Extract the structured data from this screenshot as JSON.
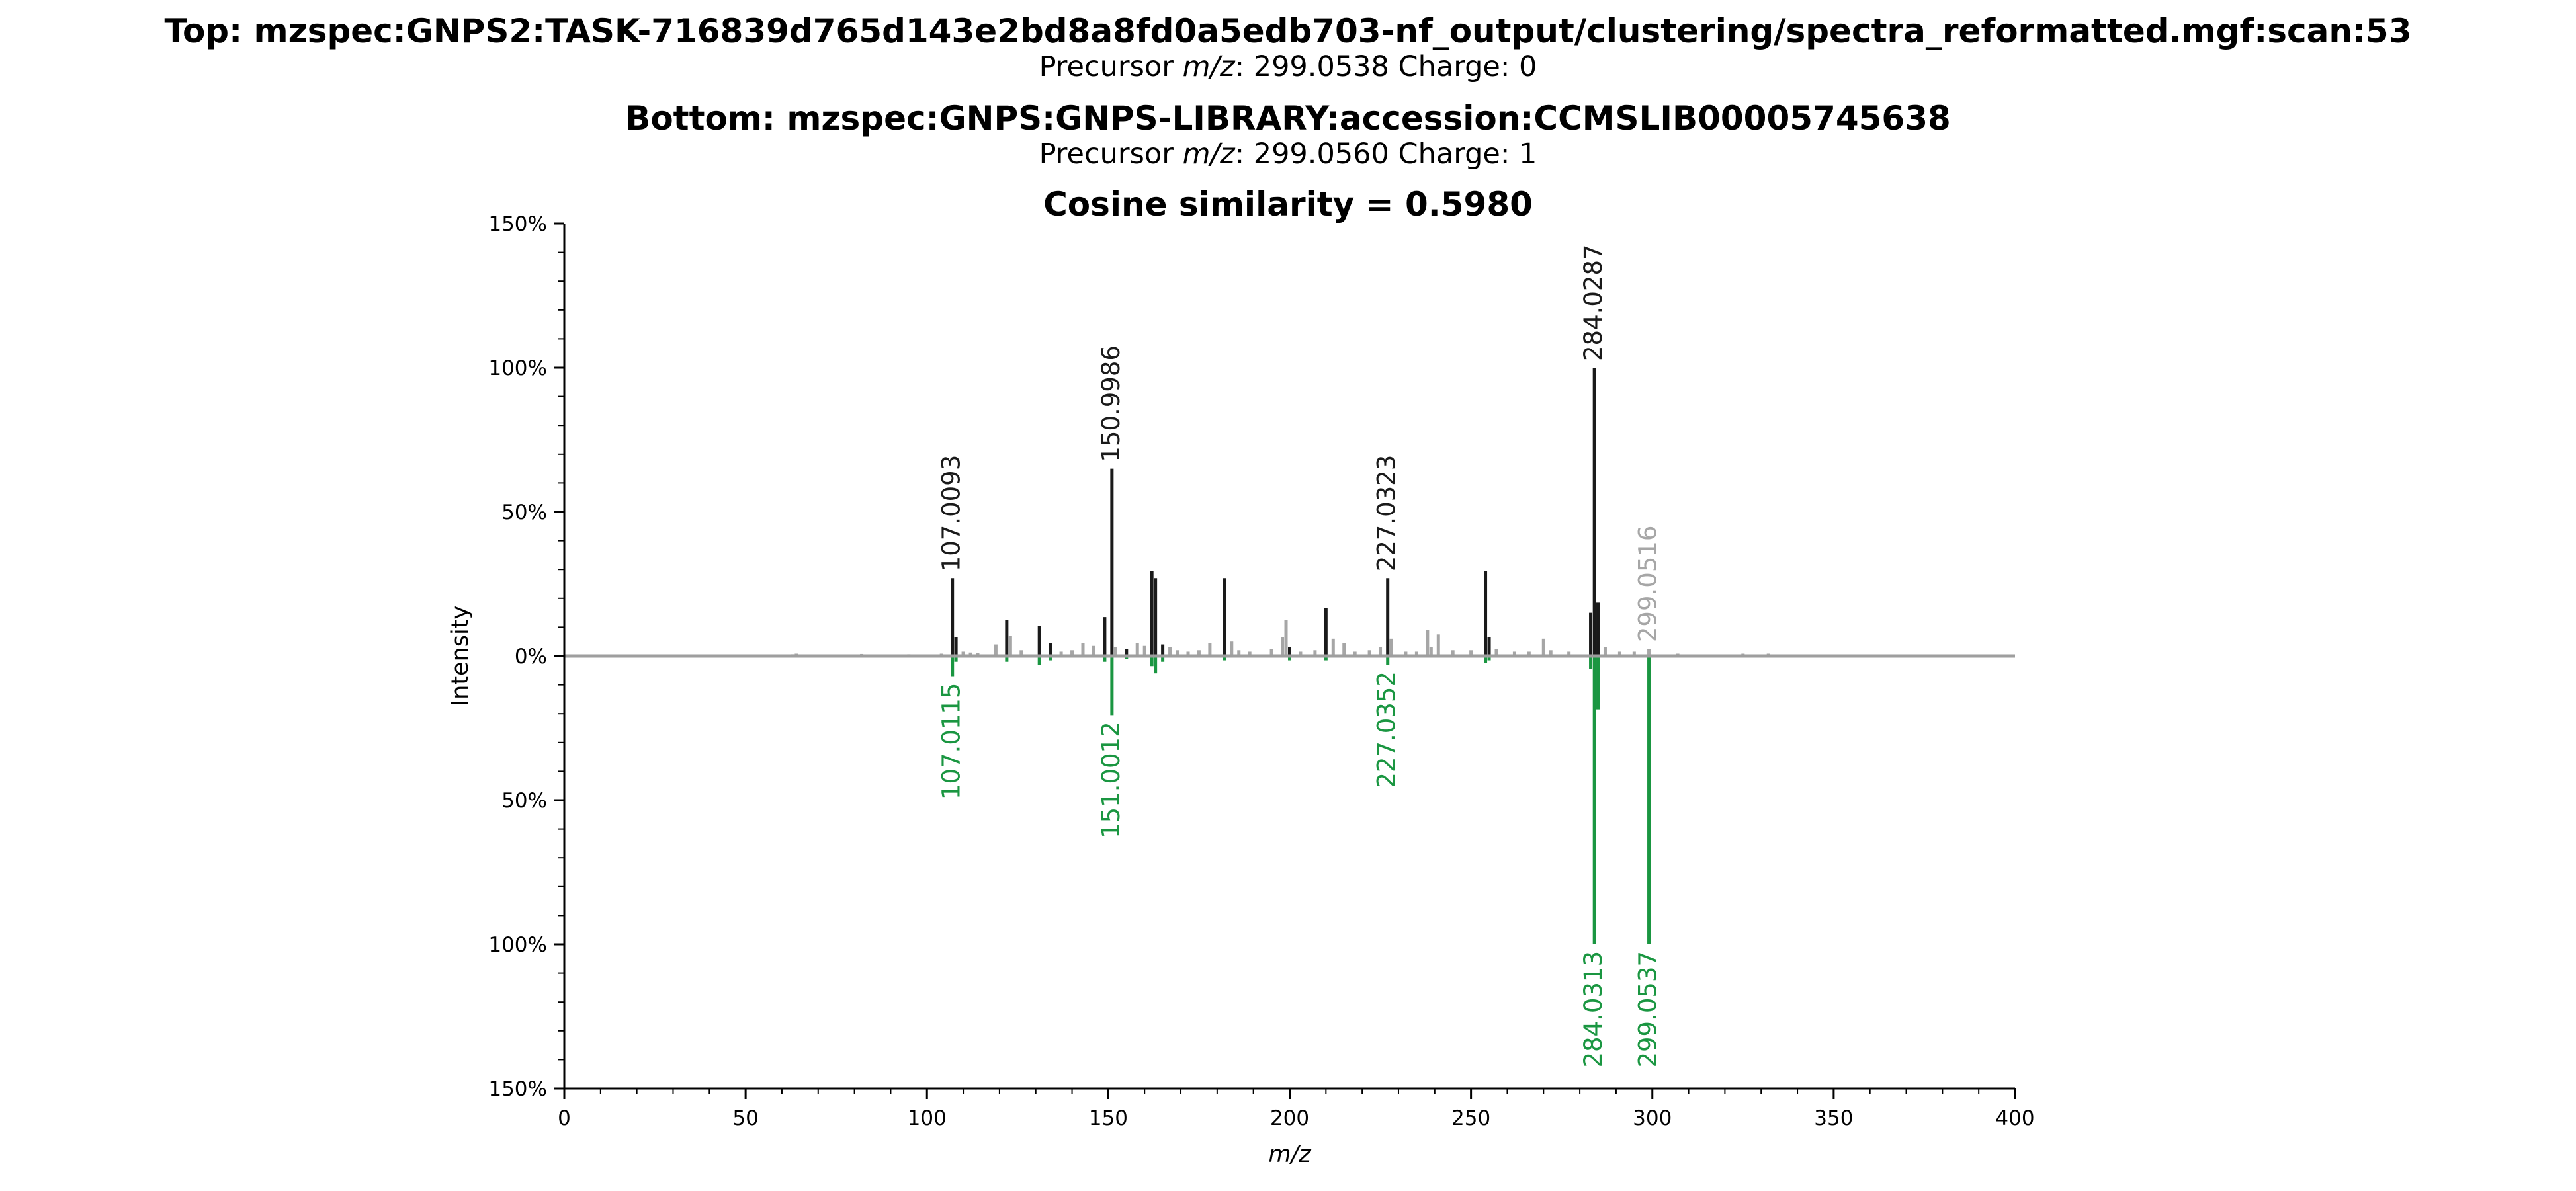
{
  "titles": {
    "top": "Top: mzspec:GNPS2:TASK-716839d765d143e2bd8a8fd0a5edb703-nf_output/clustering/spectra_reformatted.mgf:scan:53",
    "top_precursor_label": "Precursor ",
    "top_precursor_mz_word": "m/z",
    "top_precursor_rest": ": 299.0538 Charge: 0",
    "bottom": "Bottom: mzspec:GNPS:GNPS-LIBRARY:accession:CCMSLIB00005745638",
    "bottom_precursor_label": "Precursor ",
    "bottom_precursor_mz_word": "m/z",
    "bottom_precursor_rest": ": 299.0560 Charge: 1",
    "similarity": "Cosine similarity = 0.5980"
  },
  "chart_data": {
    "type": "bar",
    "subtype": "mirror-spectrum",
    "xlabel": "m/z",
    "ylabel": "Intensity",
    "xlim": [
      0,
      400
    ],
    "ylim": [
      -150,
      150
    ],
    "x_ticks": [
      "0",
      "50",
      "100",
      "150",
      "200",
      "250",
      "300",
      "350",
      "400"
    ],
    "y_ticks": [
      {
        "value": 150,
        "label": "150%"
      },
      {
        "value": 100,
        "label": "100%"
      },
      {
        "value": 50,
        "label": "50%"
      },
      {
        "value": 0,
        "label": "0%"
      },
      {
        "value": -50,
        "label": "50%"
      },
      {
        "value": -100,
        "label": "100%"
      },
      {
        "value": -150,
        "label": "150%"
      }
    ],
    "colors": {
      "matched": "#1a1a1a",
      "unmatched": "#a6a6a6",
      "bottom_matched": "#1a9641",
      "bottom_unmatched": "#a6a6a6",
      "baseline": "#9e9e9e",
      "label_top": "#1a1a1a",
      "label_top_unmatched": "#a6a6a6",
      "label_bottom": "#1a9641"
    },
    "top_peaks": [
      {
        "mz": 63.0,
        "intensity": 0.6,
        "matched": false
      },
      {
        "mz": 64.0,
        "intensity": 0.8,
        "matched": false
      },
      {
        "mz": 82.0,
        "intensity": 0.7,
        "matched": false
      },
      {
        "mz": 95.0,
        "intensity": 0.6,
        "matched": false
      },
      {
        "mz": 104.0,
        "intensity": 0.8,
        "matched": false
      },
      {
        "mz": 107.0093,
        "intensity": 27,
        "matched": true,
        "label": "107.0093"
      },
      {
        "mz": 108.0,
        "intensity": 6.5,
        "matched": true
      },
      {
        "mz": 110.0,
        "intensity": 1.5,
        "matched": false
      },
      {
        "mz": 112.0,
        "intensity": 1.2,
        "matched": false
      },
      {
        "mz": 114.0,
        "intensity": 1.0,
        "matched": false
      },
      {
        "mz": 119.0,
        "intensity": 4.0,
        "matched": false
      },
      {
        "mz": 122.0,
        "intensity": 12.5,
        "matched": true
      },
      {
        "mz": 123.0,
        "intensity": 7.0,
        "matched": false
      },
      {
        "mz": 126.0,
        "intensity": 2.0,
        "matched": false
      },
      {
        "mz": 131.0,
        "intensity": 10.5,
        "matched": true
      },
      {
        "mz": 134.0,
        "intensity": 4.5,
        "matched": true
      },
      {
        "mz": 137.0,
        "intensity": 1.5,
        "matched": false
      },
      {
        "mz": 140.0,
        "intensity": 2.0,
        "matched": false
      },
      {
        "mz": 143.0,
        "intensity": 4.5,
        "matched": false
      },
      {
        "mz": 146.0,
        "intensity": 3.5,
        "matched": false
      },
      {
        "mz": 149.0,
        "intensity": 13.5,
        "matched": true
      },
      {
        "mz": 150.9986,
        "intensity": 65,
        "matched": true,
        "label": "150.9986"
      },
      {
        "mz": 152.0,
        "intensity": 3.0,
        "matched": false
      },
      {
        "mz": 155.0,
        "intensity": 2.5,
        "matched": true
      },
      {
        "mz": 158.0,
        "intensity": 4.5,
        "matched": false
      },
      {
        "mz": 160.0,
        "intensity": 3.5,
        "matched": false
      },
      {
        "mz": 162.0,
        "intensity": 29.5,
        "matched": true
      },
      {
        "mz": 163.0,
        "intensity": 27,
        "matched": true
      },
      {
        "mz": 165.0,
        "intensity": 4.0,
        "matched": true
      },
      {
        "mz": 167.0,
        "intensity": 3.0,
        "matched": false
      },
      {
        "mz": 169.0,
        "intensity": 2.0,
        "matched": false
      },
      {
        "mz": 172.0,
        "intensity": 1.5,
        "matched": false
      },
      {
        "mz": 175.0,
        "intensity": 2.0,
        "matched": false
      },
      {
        "mz": 178.0,
        "intensity": 4.5,
        "matched": false
      },
      {
        "mz": 182.0,
        "intensity": 27,
        "matched": true
      },
      {
        "mz": 184.0,
        "intensity": 5.0,
        "matched": false
      },
      {
        "mz": 186.0,
        "intensity": 2.0,
        "matched": false
      },
      {
        "mz": 189.0,
        "intensity": 1.5,
        "matched": false
      },
      {
        "mz": 195.0,
        "intensity": 2.5,
        "matched": false
      },
      {
        "mz": 198.0,
        "intensity": 6.5,
        "matched": false
      },
      {
        "mz": 199.0,
        "intensity": 12.5,
        "matched": false
      },
      {
        "mz": 200.0,
        "intensity": 3.0,
        "matched": true
      },
      {
        "mz": 203.0,
        "intensity": 1.5,
        "matched": false
      },
      {
        "mz": 207.0,
        "intensity": 2.0,
        "matched": false
      },
      {
        "mz": 210.0,
        "intensity": 16.5,
        "matched": true
      },
      {
        "mz": 212.0,
        "intensity": 6.0,
        "matched": false
      },
      {
        "mz": 215.0,
        "intensity": 4.5,
        "matched": false
      },
      {
        "mz": 218.0,
        "intensity": 1.5,
        "matched": false
      },
      {
        "mz": 222.0,
        "intensity": 2.0,
        "matched": false
      },
      {
        "mz": 225.0,
        "intensity": 3.0,
        "matched": false
      },
      {
        "mz": 227.0323,
        "intensity": 27,
        "matched": true,
        "label": "227.0323"
      },
      {
        "mz": 228.0,
        "intensity": 6.0,
        "matched": false
      },
      {
        "mz": 232.0,
        "intensity": 1.5,
        "matched": false
      },
      {
        "mz": 235.0,
        "intensity": 1.5,
        "matched": false
      },
      {
        "mz": 238.0,
        "intensity": 9.0,
        "matched": false
      },
      {
        "mz": 239.0,
        "intensity": 3.0,
        "matched": false
      },
      {
        "mz": 241.0,
        "intensity": 7.5,
        "matched": false
      },
      {
        "mz": 245.0,
        "intensity": 2.0,
        "matched": false
      },
      {
        "mz": 250.0,
        "intensity": 2.0,
        "matched": false
      },
      {
        "mz": 254.0,
        "intensity": 29.5,
        "matched": true
      },
      {
        "mz": 255.0,
        "intensity": 6.5,
        "matched": true
      },
      {
        "mz": 257.0,
        "intensity": 2.5,
        "matched": false
      },
      {
        "mz": 262.0,
        "intensity": 1.5,
        "matched": false
      },
      {
        "mz": 266.0,
        "intensity": 1.5,
        "matched": false
      },
      {
        "mz": 270.0,
        "intensity": 6.0,
        "matched": false
      },
      {
        "mz": 272.0,
        "intensity": 2.0,
        "matched": false
      },
      {
        "mz": 277.0,
        "intensity": 1.5,
        "matched": false
      },
      {
        "mz": 283.0,
        "intensity": 15.0,
        "matched": true
      },
      {
        "mz": 284.0287,
        "intensity": 100,
        "matched": true,
        "label": "284.0287"
      },
      {
        "mz": 285.0,
        "intensity": 18.5,
        "matched": true
      },
      {
        "mz": 287.0,
        "intensity": 3.0,
        "matched": false
      },
      {
        "mz": 291.0,
        "intensity": 1.5,
        "matched": false
      },
      {
        "mz": 295.0,
        "intensity": 1.5,
        "matched": false
      },
      {
        "mz": 299.0516,
        "intensity": 2.5,
        "matched": false,
        "label": "299.0516"
      },
      {
        "mz": 307.0,
        "intensity": 0.8,
        "matched": false
      },
      {
        "mz": 325.0,
        "intensity": 0.8,
        "matched": false
      },
      {
        "mz": 332.0,
        "intensity": 0.8,
        "matched": false
      }
    ],
    "bottom_peaks": [
      {
        "mz": 107.0115,
        "intensity": 7.0,
        "matched": true,
        "label": "107.0115"
      },
      {
        "mz": 108.0,
        "intensity": 2.0,
        "matched": true
      },
      {
        "mz": 122.0,
        "intensity": 2.0,
        "matched": true
      },
      {
        "mz": 131.0,
        "intensity": 3.0,
        "matched": true
      },
      {
        "mz": 134.0,
        "intensity": 1.5,
        "matched": true
      },
      {
        "mz": 149.0,
        "intensity": 2.0,
        "matched": true
      },
      {
        "mz": 151.0012,
        "intensity": 20.5,
        "matched": true,
        "label": "151.0012"
      },
      {
        "mz": 155.0,
        "intensity": 1.0,
        "matched": true
      },
      {
        "mz": 162.0,
        "intensity": 3.5,
        "matched": true
      },
      {
        "mz": 163.0,
        "intensity": 6.0,
        "matched": true
      },
      {
        "mz": 165.0,
        "intensity": 2.0,
        "matched": true
      },
      {
        "mz": 182.0,
        "intensity": 1.5,
        "matched": true
      },
      {
        "mz": 200.0,
        "intensity": 1.5,
        "matched": true
      },
      {
        "mz": 210.0,
        "intensity": 1.5,
        "matched": true
      },
      {
        "mz": 227.0352,
        "intensity": 3.0,
        "matched": true,
        "label": "227.0352"
      },
      {
        "mz": 254.0,
        "intensity": 2.5,
        "matched": true
      },
      {
        "mz": 255.0,
        "intensity": 1.5,
        "matched": true
      },
      {
        "mz": 283.0,
        "intensity": 4.5,
        "matched": true
      },
      {
        "mz": 284.0313,
        "intensity": 100,
        "matched": true,
        "label": "284.0313"
      },
      {
        "mz": 285.0,
        "intensity": 18.5,
        "matched": true
      },
      {
        "mz": 299.0537,
        "intensity": 100,
        "matched": true,
        "label": "299.0537"
      }
    ]
  }
}
